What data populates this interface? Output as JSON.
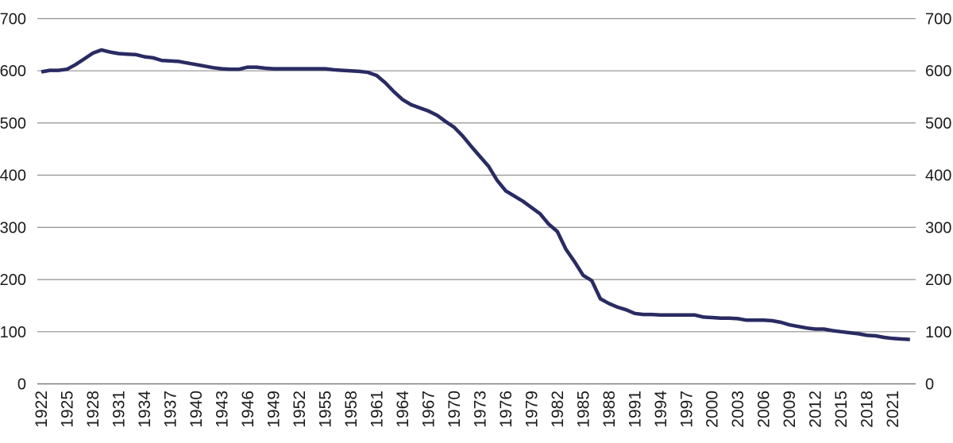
{
  "chart": {
    "line_color": "#292b62",
    "grid_color": "#909090",
    "axis_color": "#7d7d7d",
    "text_color": "#1b1b1b",
    "background": "#ffffff",
    "y_tick_labels_left": [
      "0",
      "100",
      "200",
      "300",
      "400",
      "500",
      "600",
      "700"
    ],
    "y_tick_labels_right": [
      "0",
      "100",
      "200",
      "300",
      "400",
      "500",
      "600",
      "700"
    ],
    "x_tick_labels": [
      "1922",
      "1925",
      "1928",
      "1931",
      "1934",
      "1937",
      "1940",
      "1943",
      "1946",
      "1949",
      "1952",
      "1955",
      "1958",
      "1961",
      "1964",
      "1967",
      "1970",
      "1973",
      "1976",
      "1979",
      "1982",
      "1985",
      "1988",
      "1991",
      "1994",
      "1997",
      "2000",
      "2003",
      "2006",
      "2009",
      "2012",
      "2015",
      "2018",
      "2021"
    ]
  },
  "chart_data": {
    "type": "line",
    "title": "",
    "xlabel": "",
    "ylabel": "",
    "ylim": [
      0,
      700
    ],
    "y_tick_step": 100,
    "x_tick_step": 3,
    "grid": "horizontal",
    "y_axis_sides": "both",
    "x_label_rotation": -90,
    "x": [
      1922,
      1923,
      1924,
      1925,
      1926,
      1927,
      1928,
      1929,
      1930,
      1931,
      1932,
      1933,
      1934,
      1935,
      1936,
      1937,
      1938,
      1939,
      1940,
      1941,
      1942,
      1943,
      1944,
      1945,
      1946,
      1947,
      1948,
      1949,
      1950,
      1951,
      1952,
      1953,
      1954,
      1955,
      1956,
      1957,
      1958,
      1959,
      1960,
      1961,
      1962,
      1963,
      1964,
      1965,
      1966,
      1967,
      1968,
      1969,
      1970,
      1971,
      1972,
      1973,
      1974,
      1975,
      1976,
      1977,
      1978,
      1979,
      1980,
      1981,
      1982,
      1983,
      1984,
      1985,
      1986,
      1987,
      1988,
      1989,
      1990,
      1991,
      1992,
      1993,
      1994,
      1995,
      1996,
      1997,
      1998,
      1999,
      2000,
      2001,
      2002,
      2003,
      2004,
      2005,
      2006,
      2007,
      2008,
      2009,
      2010,
      2011,
      2012,
      2013,
      2014,
      2015,
      2016,
      2017,
      2018,
      2019,
      2020,
      2021,
      2022,
      2023
    ],
    "values": [
      598,
      601,
      601,
      603,
      612,
      623,
      634,
      640,
      636,
      633,
      632,
      631,
      627,
      625,
      620,
      619,
      618,
      615,
      612,
      609,
      606,
      604,
      603,
      603,
      607,
      607,
      605,
      604,
      604,
      604,
      604,
      604,
      604,
      604,
      602,
      601,
      600,
      599,
      597,
      591,
      577,
      560,
      545,
      535,
      529,
      523,
      515,
      503,
      492,
      475,
      455,
      436,
      417,
      390,
      370,
      360,
      350,
      338,
      326,
      306,
      292,
      258,
      234,
      208,
      198,
      163,
      154,
      147,
      142,
      135,
      133,
      133,
      132,
      132,
      132,
      132,
      132,
      128,
      127,
      126,
      126,
      125,
      122,
      122,
      122,
      121,
      118,
      113,
      110,
      107,
      105,
      105,
      102,
      100,
      98,
      96,
      93,
      92,
      89,
      87,
      86,
      85
    ]
  }
}
